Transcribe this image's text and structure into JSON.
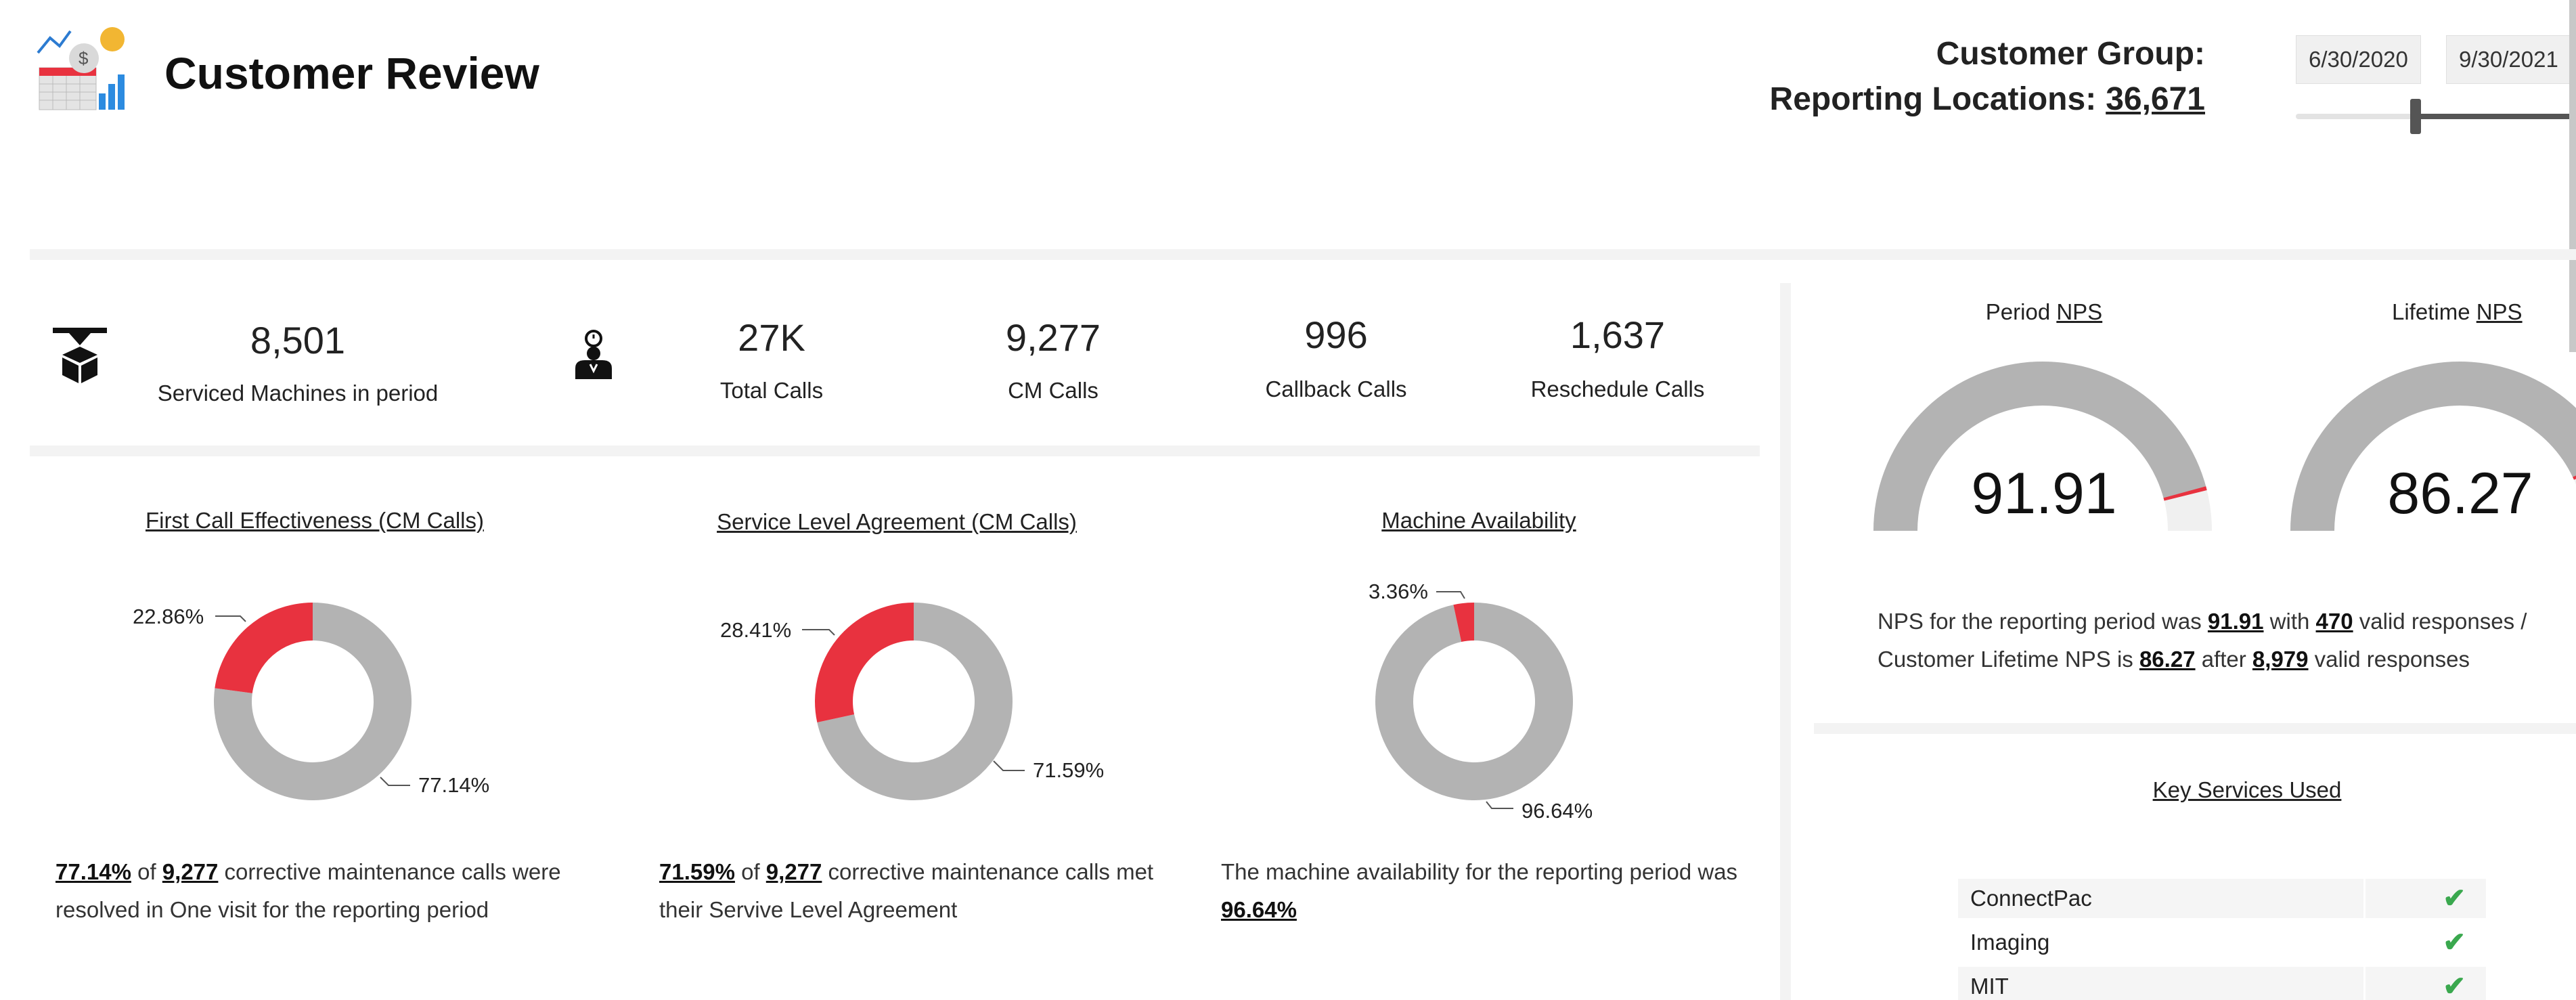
{
  "header": {
    "title": "Customer Review",
    "customer_group_label": "Customer Group:",
    "reporting_locations_label": "Reporting Locations:",
    "reporting_locations_value": "36,671",
    "date_start": "6/30/2020",
    "date_end": "9/30/2021"
  },
  "kpis": {
    "serviced_machines": {
      "value": "8,501",
      "label": "Serviced Machines in period"
    },
    "total_calls": {
      "value": "27K",
      "label": "Total Calls"
    },
    "cm_calls": {
      "value": "9,277",
      "label": "CM Calls"
    },
    "callback_calls": {
      "value": "996",
      "label": "Callback Calls"
    },
    "reschedule_calls": {
      "value": "1,637",
      "label": "Reschedule Calls"
    }
  },
  "fce": {
    "title": "First Call Effectiveness (CM Calls)",
    "red_label": "22.86%",
    "gray_label": "77.14%",
    "text_pct": "77.14%",
    "text_of": " of ",
    "text_calls": "9,277",
    "text_rest": " corrective maintenance calls were resolved in One visit for the reporting period"
  },
  "sla": {
    "title": "Service Level Agreement (CM Calls)",
    "red_label": "28.41%",
    "gray_label": "71.59%",
    "text_pct": "71.59%",
    "text_of": " of ",
    "text_calls": "9,277",
    "text_rest": " corrective  maintenance calls met their Servive Level Agreement"
  },
  "availability": {
    "title": "Machine Availability",
    "red_label": "3.36%",
    "gray_label": "96.64%",
    "text_pre": "The machine availability for the reporting period was ",
    "text_pct": "96.64%"
  },
  "nps": {
    "period_label_pre": "Period ",
    "period_label_link": "NPS",
    "lifetime_label_pre": "Lifetime ",
    "lifetime_label_link": "NPS",
    "period_value": "91.91",
    "lifetime_value": "86.27",
    "text_1": "NPS for the reporting period was ",
    "period_bold": "91.91",
    "text_2": " with ",
    "period_responses": "470",
    "text_3": " valid responses / Customer Lifetime NPS is ",
    "lifetime_bold": "86.27",
    "text_4": " after ",
    "lifetime_responses": "8,979",
    "text_5": " valid responses"
  },
  "key_services": {
    "title": "Key Services Used",
    "items": [
      {
        "name": "ConnectPac",
        "check": "✔"
      },
      {
        "name": "Imaging",
        "check": "✔"
      },
      {
        "name": "MIT",
        "check": "✔"
      }
    ]
  },
  "colors": {
    "red": "#e8323f",
    "gray": "#b3b3b3",
    "check": "#3aa84e"
  },
  "chart_data": [
    {
      "type": "pie",
      "title": "First Call Effectiveness (CM Calls)",
      "values": [
        22.86,
        77.14
      ]
    },
    {
      "type": "pie",
      "title": "Service Level Agreement (CM Calls)",
      "values": [
        28.41,
        71.59
      ]
    },
    {
      "type": "pie",
      "title": "Machine Availability",
      "values": [
        3.36,
        96.64
      ]
    }
  ],
  "gauges": {
    "period": {
      "value": 91.91,
      "min": 0,
      "max": 100
    },
    "lifetime": {
      "value": 86.27,
      "min": 0,
      "max": 100
    }
  }
}
